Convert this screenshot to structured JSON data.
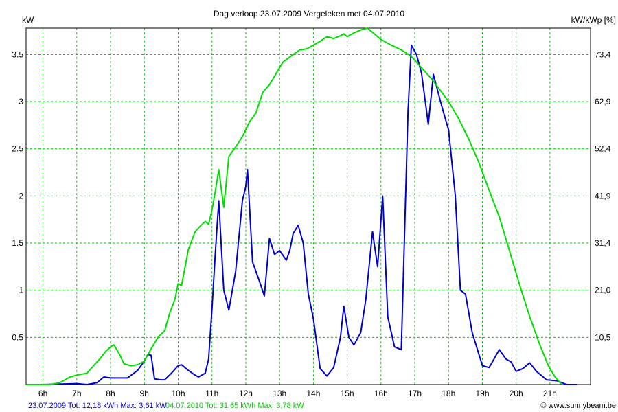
{
  "header": {
    "title": "Dag  verloop 23.07.2009   Vergeleken met 04.07.2010",
    "left_unit": "kW",
    "right_unit": "kW/kWp [%]"
  },
  "footer": {
    "blue_text": "23.07.2009 Tot: 12,18 kWh Max: 3,61 kW",
    "green_text": "04.07.2010 Tot: 31,65 kWh Max: 3,78 kW",
    "credit": "© www.sunnybeam.be"
  },
  "colors": {
    "blue": "#0000cc",
    "green": "#00dd00",
    "grid": "#00cc00"
  },
  "chart_data": {
    "type": "line",
    "xlim": [
      5.5,
      22.2
    ],
    "ylim": [
      0,
      3.78
    ],
    "x_ticks": [
      {
        "v": 6,
        "label": "6h"
      },
      {
        "v": 7,
        "label": "7h"
      },
      {
        "v": 8,
        "label": "8h"
      },
      {
        "v": 9,
        "label": "9h"
      },
      {
        "v": 10,
        "label": "10h"
      },
      {
        "v": 11,
        "label": "11h"
      },
      {
        "v": 12,
        "label": "12h"
      },
      {
        "v": 13,
        "label": "13h"
      },
      {
        "v": 14,
        "label": "14h"
      },
      {
        "v": 15,
        "label": "15h"
      },
      {
        "v": 16,
        "label": "16h"
      },
      {
        "v": 17,
        "label": "17h"
      },
      {
        "v": 18,
        "label": "18h"
      },
      {
        "v": 19,
        "label": "19h"
      },
      {
        "v": 20,
        "label": "20h"
      },
      {
        "v": 21,
        "label": "21h"
      }
    ],
    "y_ticks_left": [
      {
        "v": 0.5,
        "label": "0.5"
      },
      {
        "v": 1,
        "label": "1"
      },
      {
        "v": 1.5,
        "label": "1.5"
      },
      {
        "v": 2,
        "label": "2"
      },
      {
        "v": 2.5,
        "label": "2.5"
      },
      {
        "v": 3,
        "label": "3"
      },
      {
        "v": 3.5,
        "label": "3.5"
      }
    ],
    "y_ticks_right": [
      {
        "v": 0.5,
        "label": "10,5"
      },
      {
        "v": 1,
        "label": "21,0"
      },
      {
        "v": 1.5,
        "label": "31,4"
      },
      {
        "v": 2,
        "label": "41,9"
      },
      {
        "v": 2.5,
        "label": "52,4"
      },
      {
        "v": 3,
        "label": "62,9"
      },
      {
        "v": 3.5,
        "label": "73,4"
      }
    ],
    "grid": true,
    "series": [
      {
        "color": "#0000cc",
        "points": [
          [
            6.0,
            0
          ],
          [
            7.0,
            0.01
          ],
          [
            7.3,
            0.0
          ],
          [
            7.6,
            0.02
          ],
          [
            7.8,
            0.08
          ],
          [
            8.0,
            0.07
          ],
          [
            8.3,
            0.07
          ],
          [
            8.5,
            0.07
          ],
          [
            8.8,
            0.15
          ],
          [
            9.0,
            0.25
          ],
          [
            9.1,
            0.32
          ],
          [
            9.2,
            0.31
          ],
          [
            9.3,
            0.06
          ],
          [
            9.5,
            0.05
          ],
          [
            9.6,
            0.05
          ],
          [
            9.8,
            0.12
          ],
          [
            10.0,
            0.2
          ],
          [
            10.1,
            0.21
          ],
          [
            10.3,
            0.15
          ],
          [
            10.5,
            0.1
          ],
          [
            10.6,
            0.08
          ],
          [
            10.8,
            0.12
          ],
          [
            10.9,
            0.27
          ],
          [
            11.0,
            0.8
          ],
          [
            11.1,
            1.4
          ],
          [
            11.2,
            1.95
          ],
          [
            11.35,
            1.0
          ],
          [
            11.5,
            0.79
          ],
          [
            11.7,
            1.2
          ],
          [
            11.9,
            1.95
          ],
          [
            12.0,
            2.1
          ],
          [
            12.05,
            2.28
          ],
          [
            12.2,
            1.3
          ],
          [
            12.4,
            1.1
          ],
          [
            12.55,
            0.94
          ],
          [
            12.7,
            1.55
          ],
          [
            12.85,
            1.38
          ],
          [
            13.0,
            1.42
          ],
          [
            13.2,
            1.32
          ],
          [
            13.3,
            1.42
          ],
          [
            13.4,
            1.6
          ],
          [
            13.55,
            1.69
          ],
          [
            13.7,
            1.5
          ],
          [
            13.85,
            0.96
          ],
          [
            14.0,
            0.7
          ],
          [
            14.2,
            0.17
          ],
          [
            14.4,
            0.09
          ],
          [
            14.6,
            0.18
          ],
          [
            14.8,
            0.5
          ],
          [
            14.9,
            0.83
          ],
          [
            15.05,
            0.5
          ],
          [
            15.2,
            0.42
          ],
          [
            15.4,
            0.55
          ],
          [
            15.55,
            0.9
          ],
          [
            15.75,
            1.62
          ],
          [
            15.9,
            1.25
          ],
          [
            16.05,
            2.0
          ],
          [
            16.2,
            0.72
          ],
          [
            16.4,
            0.4
          ],
          [
            16.6,
            0.37
          ],
          [
            16.8,
            2.9
          ],
          [
            16.9,
            3.6
          ],
          [
            17.05,
            3.5
          ],
          [
            17.2,
            3.3
          ],
          [
            17.4,
            2.76
          ],
          [
            17.55,
            3.29
          ],
          [
            17.8,
            2.95
          ],
          [
            18.0,
            2.7
          ],
          [
            18.2,
            2.0
          ],
          [
            18.35,
            1.0
          ],
          [
            18.5,
            0.96
          ],
          [
            18.7,
            0.55
          ],
          [
            19.0,
            0.2
          ],
          [
            19.2,
            0.18
          ],
          [
            19.5,
            0.37
          ],
          [
            19.7,
            0.27
          ],
          [
            19.85,
            0.24
          ],
          [
            20.0,
            0.14
          ],
          [
            20.2,
            0.17
          ],
          [
            20.4,
            0.23
          ],
          [
            20.6,
            0.14
          ],
          [
            20.9,
            0.05
          ],
          [
            21.2,
            0.04
          ],
          [
            21.5,
            0.0
          ],
          [
            21.8,
            0.0
          ]
        ]
      },
      {
        "color": "#00dd00",
        "points": [
          [
            5.5,
            0
          ],
          [
            6.2,
            0
          ],
          [
            6.5,
            0.02
          ],
          [
            6.8,
            0.08
          ],
          [
            7.0,
            0.1
          ],
          [
            7.3,
            0.12
          ],
          [
            7.5,
            0.2
          ],
          [
            7.7,
            0.28
          ],
          [
            7.85,
            0.35
          ],
          [
            8.0,
            0.4
          ],
          [
            8.1,
            0.42
          ],
          [
            8.25,
            0.33
          ],
          [
            8.4,
            0.22
          ],
          [
            8.6,
            0.2
          ],
          [
            8.8,
            0.21
          ],
          [
            9.0,
            0.25
          ],
          [
            9.2,
            0.38
          ],
          [
            9.4,
            0.5
          ],
          [
            9.6,
            0.57
          ],
          [
            9.75,
            0.76
          ],
          [
            9.9,
            0.9
          ],
          [
            10.0,
            1.07
          ],
          [
            10.1,
            1.05
          ],
          [
            10.3,
            1.43
          ],
          [
            10.5,
            1.62
          ],
          [
            10.65,
            1.68
          ],
          [
            10.8,
            1.73
          ],
          [
            10.9,
            1.7
          ],
          [
            11.0,
            1.85
          ],
          [
            11.1,
            2.05
          ],
          [
            11.2,
            2.28
          ],
          [
            11.35,
            1.88
          ],
          [
            11.5,
            2.42
          ],
          [
            11.7,
            2.52
          ],
          [
            11.9,
            2.63
          ],
          [
            12.1,
            2.78
          ],
          [
            12.3,
            2.88
          ],
          [
            12.5,
            3.1
          ],
          [
            12.7,
            3.18
          ],
          [
            12.9,
            3.3
          ],
          [
            13.1,
            3.42
          ],
          [
            13.4,
            3.5
          ],
          [
            13.6,
            3.55
          ],
          [
            13.8,
            3.56
          ],
          [
            14.0,
            3.6
          ],
          [
            14.2,
            3.64
          ],
          [
            14.4,
            3.69
          ],
          [
            14.6,
            3.67
          ],
          [
            14.8,
            3.7
          ],
          [
            14.9,
            3.72
          ],
          [
            15.0,
            3.69
          ],
          [
            15.2,
            3.73
          ],
          [
            15.4,
            3.76
          ],
          [
            15.6,
            3.78
          ],
          [
            15.8,
            3.72
          ],
          [
            16.0,
            3.66
          ],
          [
            16.3,
            3.6
          ],
          [
            16.6,
            3.55
          ],
          [
            16.9,
            3.48
          ],
          [
            17.2,
            3.36
          ],
          [
            17.5,
            3.24
          ],
          [
            17.8,
            3.1
          ],
          [
            18.0,
            3.0
          ],
          [
            18.3,
            2.82
          ],
          [
            18.6,
            2.6
          ],
          [
            18.9,
            2.35
          ],
          [
            19.2,
            2.06
          ],
          [
            19.5,
            1.78
          ],
          [
            19.8,
            1.42
          ],
          [
            20.1,
            1.06
          ],
          [
            20.4,
            0.72
          ],
          [
            20.7,
            0.42
          ],
          [
            20.95,
            0.2
          ],
          [
            21.15,
            0.08
          ],
          [
            21.3,
            0.02
          ],
          [
            21.35,
            0
          ]
        ]
      }
    ]
  }
}
